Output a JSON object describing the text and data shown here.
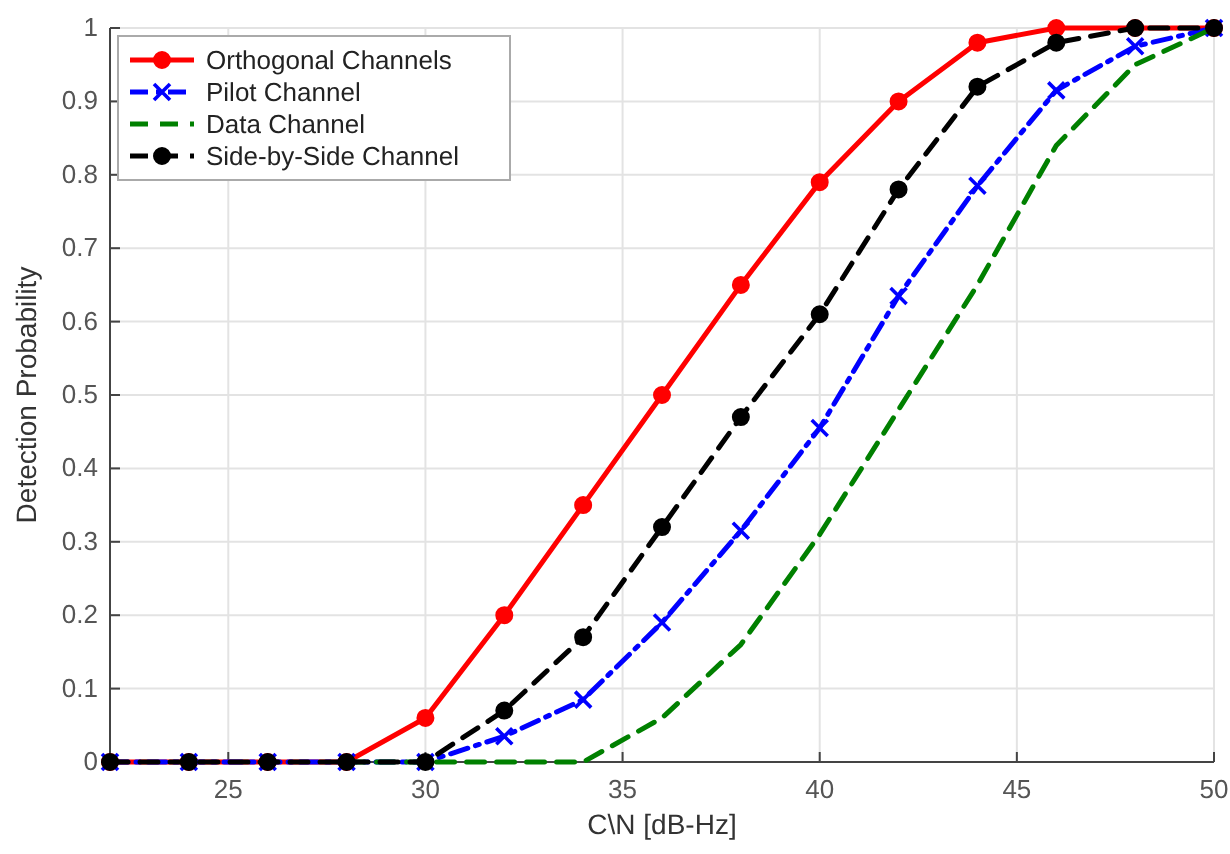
{
  "chart_data": {
    "type": "line",
    "xlabel": "C\\N [dB-Hz]",
    "ylabel": "Detection Probability",
    "x": [
      22,
      24,
      26,
      28,
      30,
      32,
      34,
      36,
      38,
      40,
      42,
      44,
      46,
      48,
      50
    ],
    "xlim": [
      22,
      50
    ],
    "xticks": [
      25,
      30,
      35,
      40,
      45,
      50
    ],
    "ylim": [
      0,
      1
    ],
    "yticks": [
      0,
      0.1,
      0.2,
      0.3,
      0.4,
      0.5,
      0.6,
      0.7,
      0.8,
      0.9,
      1
    ],
    "grid": true,
    "legend": "top left",
    "series": [
      {
        "name": "Orthogonal Channels",
        "color": "#ff0000",
        "marker": "circle",
        "line_style": "solid",
        "values": [
          0,
          0,
          0,
          0,
          0.06,
          0.2,
          0.35,
          0.5,
          0.65,
          0.79,
          0.9,
          0.98,
          1,
          1,
          1
        ]
      },
      {
        "name": "Pilot Channel",
        "color": "#0000ff",
        "marker": "cross",
        "line_style": "dashdot",
        "values": [
          0,
          0,
          0,
          0,
          0,
          0.035,
          0.085,
          0.19,
          0.315,
          0.455,
          0.635,
          0.785,
          0.915,
          0.975,
          1
        ]
      },
      {
        "name": "Data Channel",
        "color": "#008000",
        "marker": "none",
        "line_style": "dashed",
        "values": [
          null,
          null,
          null,
          0,
          0,
          0,
          0,
          0.06,
          0.16,
          0.31,
          0.48,
          0.65,
          0.84,
          0.95,
          1
        ]
      },
      {
        "name": "Side-by-Side Channel",
        "color": "#000000",
        "marker": "circle",
        "line_style": "dashed",
        "values": [
          0,
          0,
          0,
          0,
          0,
          0.07,
          0.17,
          0.32,
          0.47,
          0.61,
          0.78,
          0.92,
          0.98,
          1,
          1
        ]
      }
    ]
  }
}
